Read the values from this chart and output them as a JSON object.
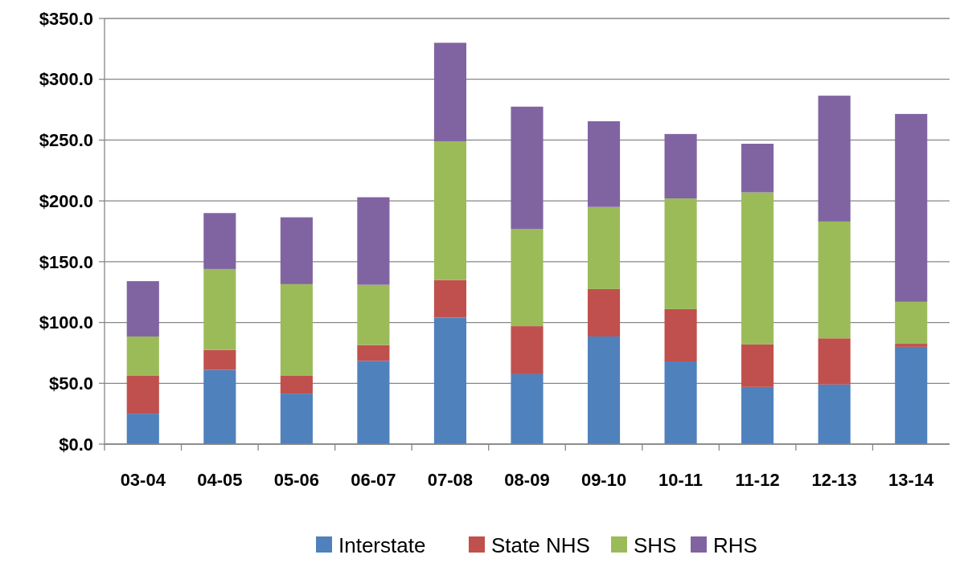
{
  "chart_data": {
    "type": "bar",
    "stacked": true,
    "categories": [
      "03-04",
      "04-05",
      "05-06",
      "06-07",
      "07-08",
      "08-09",
      "09-10",
      "10-11",
      "11-12",
      "12-13",
      "13-14"
    ],
    "series": [
      {
        "name": "Interstate",
        "color": "#4f81bd",
        "values": [
          25,
          61,
          41.5,
          68.5,
          104,
          57.5,
          88.5,
          68,
          47,
          49,
          80
        ]
      },
      {
        "name": "State NHS",
        "color": "#c0504d",
        "values": [
          31.5,
          16.5,
          15,
          13,
          31,
          39.5,
          39,
          43,
          35,
          38,
          2.5
        ]
      },
      {
        "name": "SHS",
        "color": "#9bbb59",
        "values": [
          32,
          66.5,
          75,
          49.5,
          114,
          80,
          67.5,
          91,
          125,
          96,
          34.5
        ]
      },
      {
        "name": "RHS",
        "color": "#8064a2",
        "values": [
          45.5,
          46,
          55,
          72,
          81,
          100.5,
          70.5,
          53,
          40,
          103.5,
          154.5
        ]
      }
    ],
    "ylim": [
      0,
      350
    ],
    "yticks": [
      {
        "value": 0,
        "label": "$0.0"
      },
      {
        "value": 50,
        "label": "$50.0"
      },
      {
        "value": 100,
        "label": "$100.0"
      },
      {
        "value": 150,
        "label": "$150.0"
      },
      {
        "value": 200,
        "label": "$200.0"
      },
      {
        "value": 250,
        "label": "$250.0"
      },
      {
        "value": 300,
        "label": "$300.0"
      },
      {
        "value": 350,
        "label": "$350.0"
      }
    ],
    "grid": "y",
    "legend": "bottom"
  }
}
